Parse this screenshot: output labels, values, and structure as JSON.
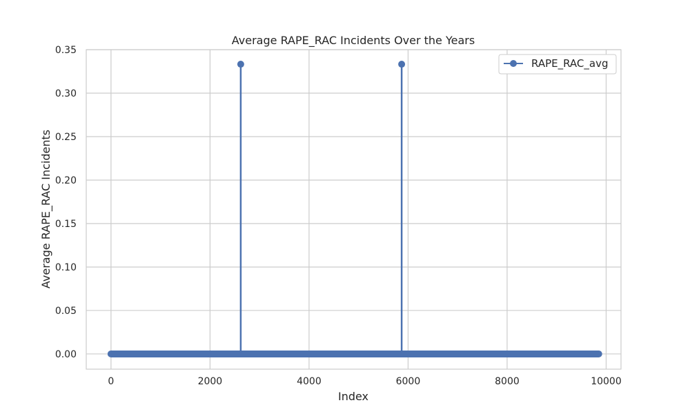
{
  "chart_data": {
    "type": "line",
    "title": "Average RAPE_RAC Incidents Over the Years",
    "xlabel": "Index",
    "ylabel": "Average RAPE_RAC Incidents",
    "xlim": [
      -500,
      10300
    ],
    "ylim": [
      -0.0175,
      0.35
    ],
    "x_ticks": [
      0,
      2000,
      4000,
      6000,
      8000,
      10000
    ],
    "x_tick_labels": [
      "0",
      "2000",
      "4000",
      "6000",
      "8000",
      "10000"
    ],
    "y_ticks": [
      0.0,
      0.05,
      0.1,
      0.15,
      0.2,
      0.25,
      0.3,
      0.35
    ],
    "y_tick_labels": [
      "0.00",
      "0.05",
      "0.10",
      "0.15",
      "0.20",
      "0.25",
      "0.30",
      "0.35"
    ],
    "grid": true,
    "legend_position": "top-right",
    "series": [
      {
        "name": "RAPE_RAC_avg",
        "color": "#4c72b0",
        "marker": "circle",
        "x_range": [
          0,
          9850
        ],
        "baseline_value": 0.0,
        "points_note_spikes": [
          {
            "x": 2620,
            "y": 0.3333
          },
          {
            "x": 5870,
            "y": 0.3333
          }
        ]
      }
    ]
  }
}
